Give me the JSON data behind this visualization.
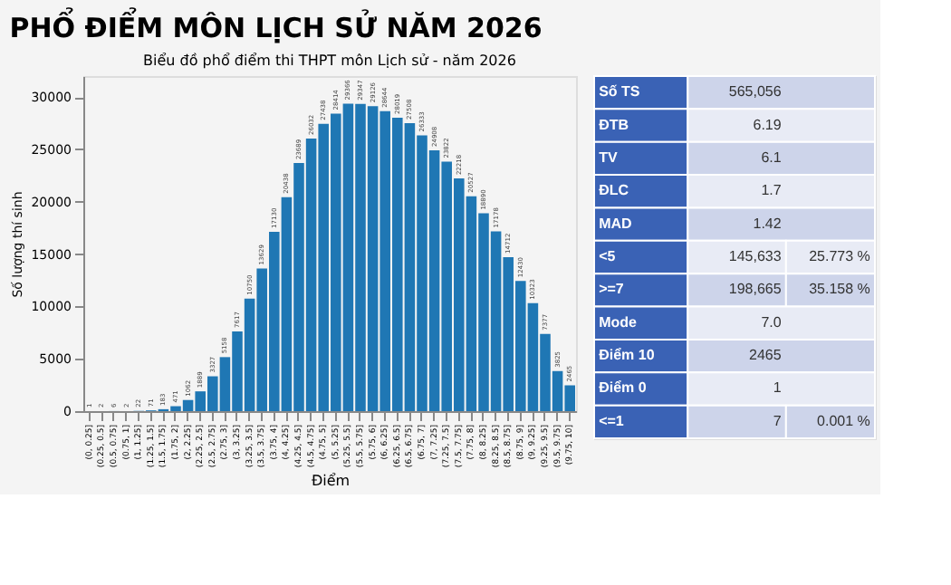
{
  "chart_data": [
    {
      "type": "bar",
      "title": "PHỔ ĐIỂM MÔN LỊCH SỬ NĂM 2026",
      "subtitle": "Biểu đồ phổ điểm thi THPT môn Lịch sử - năm 2026",
      "xlabel": "Điểm",
      "ylabel": "Số lượng thí sinh",
      "categories": [
        "(0, 0.25]",
        "(0.25, 0.5]",
        "(0.5, 0.75]",
        "(0.75, 1]",
        "(1, 1.25]",
        "(1.25, 1.5]",
        "(1.5, 1.75]",
        "(1.75, 2]",
        "(2, 2.25]",
        "(2.25, 2.5]",
        "(2.5, 2.75]",
        "(2.75, 3]",
        "(3, 3.25]",
        "(3.25, 3.5]",
        "(3.5, 3.75]",
        "(3.75, 4]",
        "(4, 4.25]",
        "(4.25, 4.5]",
        "(4.5, 4.75]",
        "(4.75, 5]",
        "(5, 5.25]",
        "(5.25, 5.5]",
        "(5.5, 5.75]",
        "(5.75, 6]",
        "(6, 6.25]",
        "(6.25, 6.5]",
        "(6.5, 6.75]",
        "(6.75, 7]",
        "(7, 7.25]",
        "(7.25, 7.5]",
        "(7.5, 7.75]",
        "(7.75, 8]",
        "(8, 8.25]",
        "(8.25, 8.5]",
        "(8.5, 8.75]",
        "(8.75, 9]",
        "(9, 9.25]",
        "(9.25, 9.5]",
        "(9.5, 9.75]",
        "(9.75, 10]"
      ],
      "values": [
        1,
        2,
        6,
        2,
        22,
        71,
        183,
        471,
        1062,
        1889,
        3327,
        5158,
        7617,
        10750,
        13629,
        17130,
        20438,
        23689,
        26032,
        27438,
        28414,
        29366,
        29347,
        29126,
        28644,
        28019,
        27508,
        26333,
        24908,
        23822,
        22218,
        20527,
        18890,
        17178,
        14712,
        12430,
        10323,
        7377,
        3825,
        2465
      ],
      "color": "#1f77b4",
      "data_labels": true,
      "ylim": [
        0,
        32000
      ],
      "yticks": [
        0,
        5000,
        10000,
        15000,
        20000,
        25000,
        30000
      ],
      "grid": false,
      "legend": false
    },
    {
      "type": "other",
      "y_categories": [
        "Số TS",
        "ĐTB",
        "TV",
        "ĐLC",
        "MAD",
        "<5",
        ">=7",
        "Mode",
        "Điểm 10",
        "Điểm 0",
        "<=1"
      ],
      "cell_labels": [
        [
          "565,056",
          null
        ],
        [
          "6.19",
          null
        ],
        [
          "6.1",
          null
        ],
        [
          "1.7",
          null
        ],
        [
          "1.42",
          null
        ],
        [
          "145,633",
          "25.773 %"
        ],
        [
          "198,665",
          "35.158 %"
        ],
        [
          "7.0",
          null
        ],
        [
          "2465",
          null
        ],
        [
          "1",
          null
        ],
        [
          "7",
          "0.001 %"
        ]
      ]
    }
  ]
}
